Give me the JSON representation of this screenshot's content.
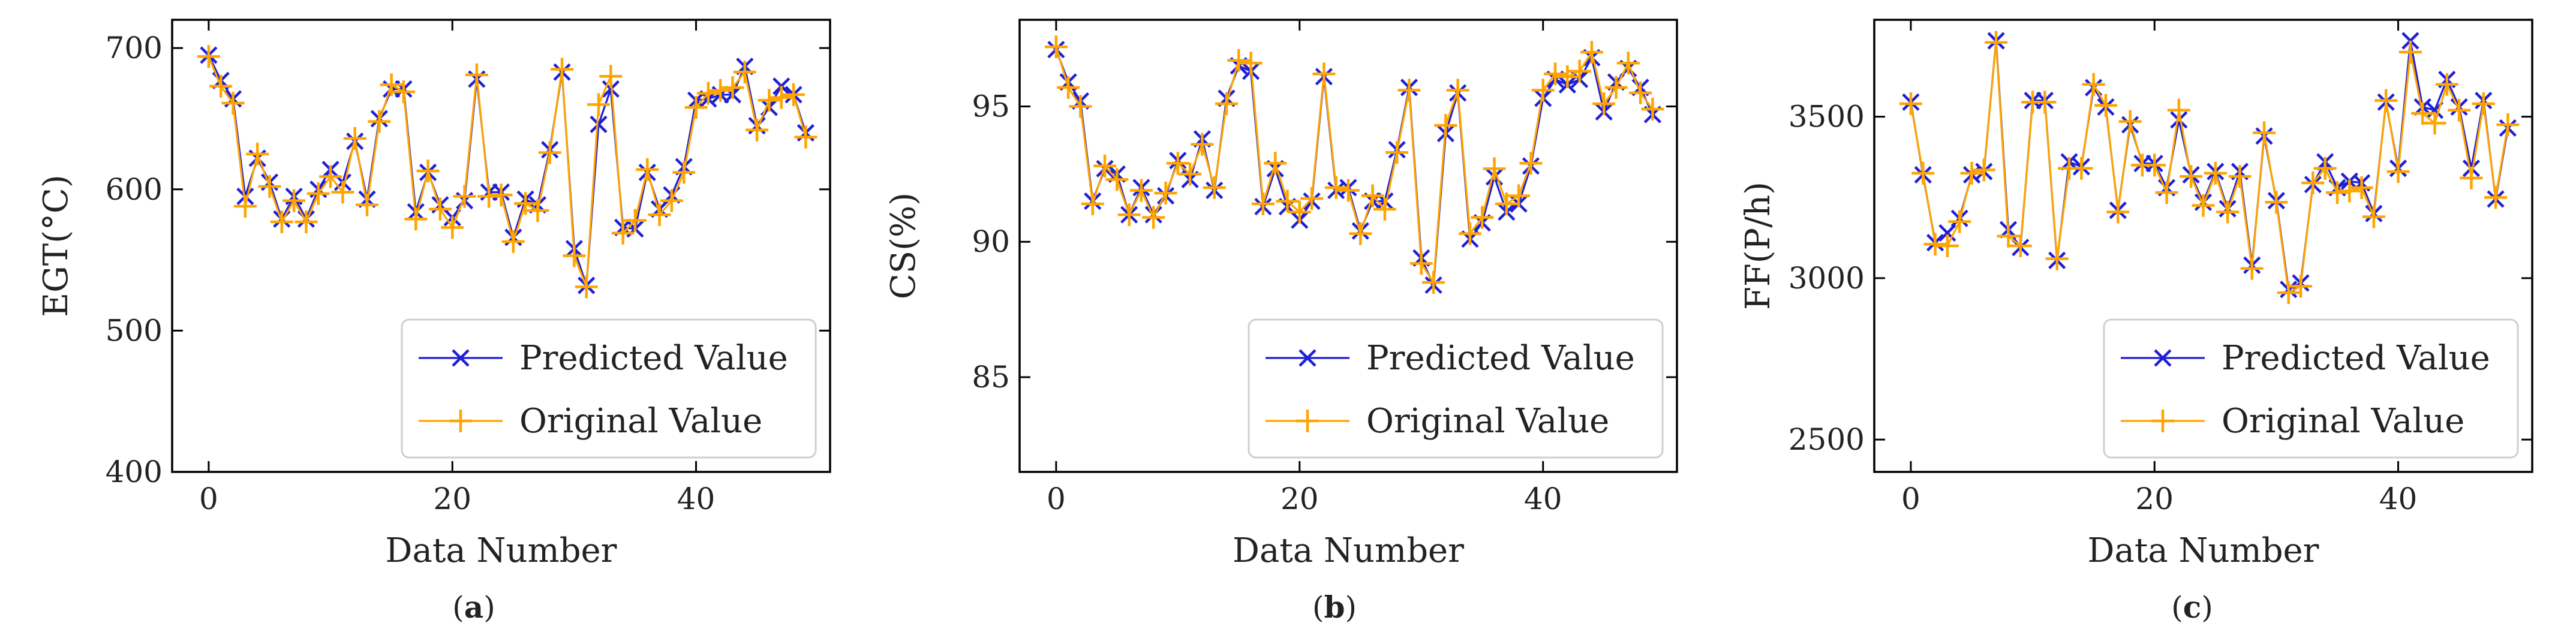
{
  "colors": {
    "predicted": "#1f1fd6",
    "original": "#ffa500"
  },
  "chart_data": [
    {
      "type": "line",
      "caption_prefix": "(",
      "caption_letter": "a",
      "caption_suffix": ")",
      "xlabel": "Data Number",
      "ylabel": "EGT(°C)",
      "xlim": [
        -3,
        51
      ],
      "ylim": [
        400,
        720
      ],
      "xticks": [
        0,
        20,
        40
      ],
      "yticks": [
        400,
        500,
        600,
        700
      ],
      "legend_position": "lower-right",
      "series": [
        {
          "name": "Predicted Value",
          "marker": "x",
          "values": [
            695,
            677,
            664,
            595,
            622,
            605,
            579,
            595,
            579,
            600,
            614,
            605,
            634,
            593,
            650,
            671,
            671,
            584,
            612,
            589,
            580,
            592,
            678,
            598,
            598,
            566,
            593,
            589,
            628,
            683,
            558,
            532,
            646,
            671,
            573,
            572,
            612,
            586,
            596,
            616,
            663,
            664,
            667,
            667,
            687,
            645,
            658,
            673,
            667,
            640
          ]
        },
        {
          "name": "Original Value",
          "marker": "+",
          "values": [
            694,
            673,
            661,
            588,
            625,
            602,
            577,
            592,
            577,
            597,
            609,
            598,
            636,
            589,
            648,
            674,
            669,
            579,
            613,
            586,
            573,
            595,
            681,
            595,
            596,
            563,
            590,
            585,
            626,
            685,
            553,
            531,
            660,
            680,
            569,
            578,
            614,
            582,
            592,
            612,
            658,
            668,
            670,
            672,
            683,
            642,
            663,
            665,
            667,
            637
          ]
        }
      ]
    },
    {
      "type": "line",
      "caption_prefix": "(",
      "caption_letter": "b",
      "caption_suffix": ")",
      "xlabel": "Data Number",
      "ylabel": "CS(%)",
      "xlim": [
        -3,
        51
      ],
      "ylim": [
        81.5,
        98.2
      ],
      "xticks": [
        0,
        20,
        40
      ],
      "yticks": [
        85,
        90,
        95
      ],
      "legend_position": "lower-right",
      "series": [
        {
          "name": "Predicted Value",
          "marker": "x",
          "values": [
            97.1,
            95.9,
            95.2,
            91.5,
            92.7,
            92.5,
            91.0,
            92.0,
            91.0,
            91.7,
            93.0,
            92.3,
            93.8,
            91.9,
            95.3,
            96.5,
            96.3,
            91.3,
            92.7,
            91.3,
            90.8,
            91.5,
            96.1,
            91.9,
            92.0,
            90.4,
            91.5,
            91.5,
            93.4,
            95.7,
            89.4,
            88.4,
            94.0,
            95.5,
            90.1,
            90.7,
            92.4,
            91.1,
            91.4,
            92.8,
            95.3,
            96.0,
            95.8,
            96.0,
            96.8,
            94.8,
            95.9,
            96.4,
            95.7,
            94.7
          ]
        },
        {
          "name": "Original Value",
          "marker": "+",
          "values": [
            97.2,
            95.7,
            95.0,
            91.4,
            92.8,
            92.3,
            91.0,
            91.9,
            90.9,
            91.8,
            92.9,
            92.5,
            93.6,
            92.0,
            95.1,
            96.7,
            96.6,
            91.4,
            92.9,
            91.5,
            91.1,
            91.6,
            96.2,
            92.0,
            91.9,
            90.3,
            91.7,
            91.2,
            93.3,
            95.6,
            89.2,
            88.5,
            94.3,
            95.6,
            90.3,
            90.9,
            92.7,
            91.4,
            91.7,
            92.9,
            95.6,
            96.2,
            96.1,
            96.3,
            97.0,
            95.1,
            95.7,
            96.6,
            95.5,
            94.9
          ]
        }
      ]
    },
    {
      "type": "line",
      "caption_prefix": "(",
      "caption_letter": "c",
      "caption_suffix": ")",
      "xlabel": "Data Number",
      "ylabel": "FF(P/h)",
      "xlim": [
        -3,
        51
      ],
      "ylim": [
        2400,
        3800
      ],
      "xticks": [
        0,
        20,
        40
      ],
      "yticks": [
        2500,
        3000,
        3500
      ],
      "legend_position": "lower-right",
      "series": [
        {
          "name": "Predicted Value",
          "marker": "x",
          "values": [
            3545,
            3320,
            3110,
            3140,
            3185,
            3320,
            3330,
            3735,
            3150,
            3095,
            3550,
            3550,
            3055,
            3360,
            3345,
            3590,
            3530,
            3210,
            3475,
            3355,
            3355,
            3280,
            3490,
            3320,
            3235,
            3330,
            3215,
            3330,
            3040,
            3440,
            3240,
            2965,
            2985,
            3290,
            3360,
            3280,
            3300,
            3295,
            3200,
            3545,
            3340,
            3735,
            3530,
            3520,
            3615,
            3530,
            3340,
            3550,
            3245,
            3465
          ]
        },
        {
          "name": "Original Value",
          "marker": "+",
          "values": [
            3540,
            3325,
            3105,
            3100,
            3175,
            3325,
            3335,
            3730,
            3130,
            3100,
            3545,
            3545,
            3060,
            3340,
            3340,
            3600,
            3535,
            3205,
            3485,
            3350,
            3350,
            3265,
            3520,
            3315,
            3225,
            3325,
            3205,
            3315,
            3030,
            3450,
            3235,
            2955,
            2975,
            3295,
            3340,
            3265,
            3270,
            3280,
            3190,
            3550,
            3330,
            3700,
            3510,
            3480,
            3600,
            3520,
            3310,
            3540,
            3250,
            3475
          ]
        }
      ]
    }
  ]
}
